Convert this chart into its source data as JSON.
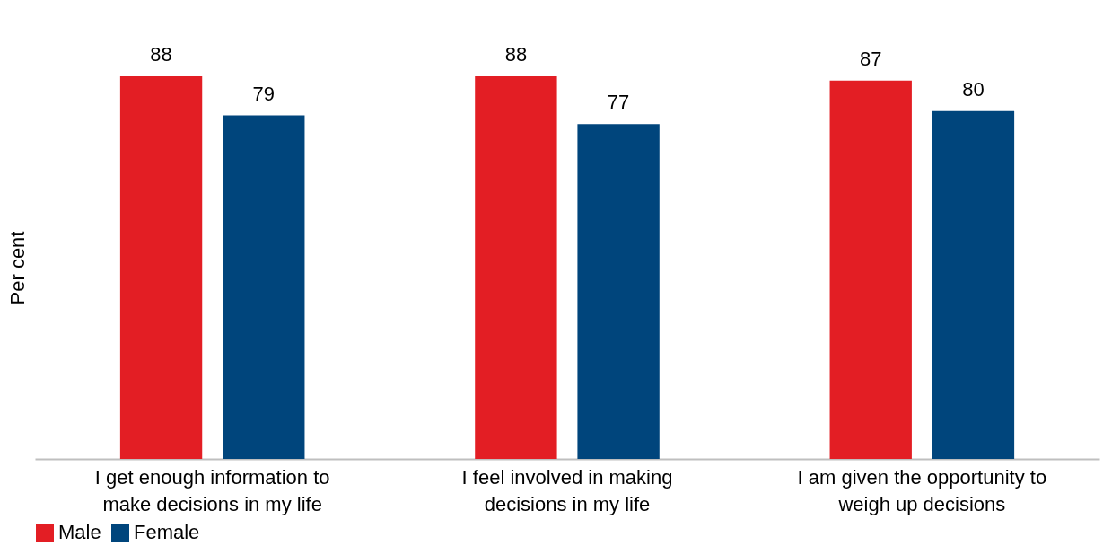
{
  "chart_data": {
    "type": "bar",
    "ylabel": "Per cent",
    "categories": [
      "I get enough information to make decisions in my life",
      "I feel involved in making decisions in my life",
      "I am given the opportunity to weigh up decisions"
    ],
    "series": [
      {
        "name": "Male",
        "color": "#e31e24",
        "values": [
          88,
          88,
          87
        ]
      },
      {
        "name": "Female",
        "color": "#00457c",
        "values": [
          79,
          77,
          80
        ]
      }
    ],
    "data_labels": true,
    "legend": "bottom",
    "grid": false,
    "tick_labels": "x"
  }
}
